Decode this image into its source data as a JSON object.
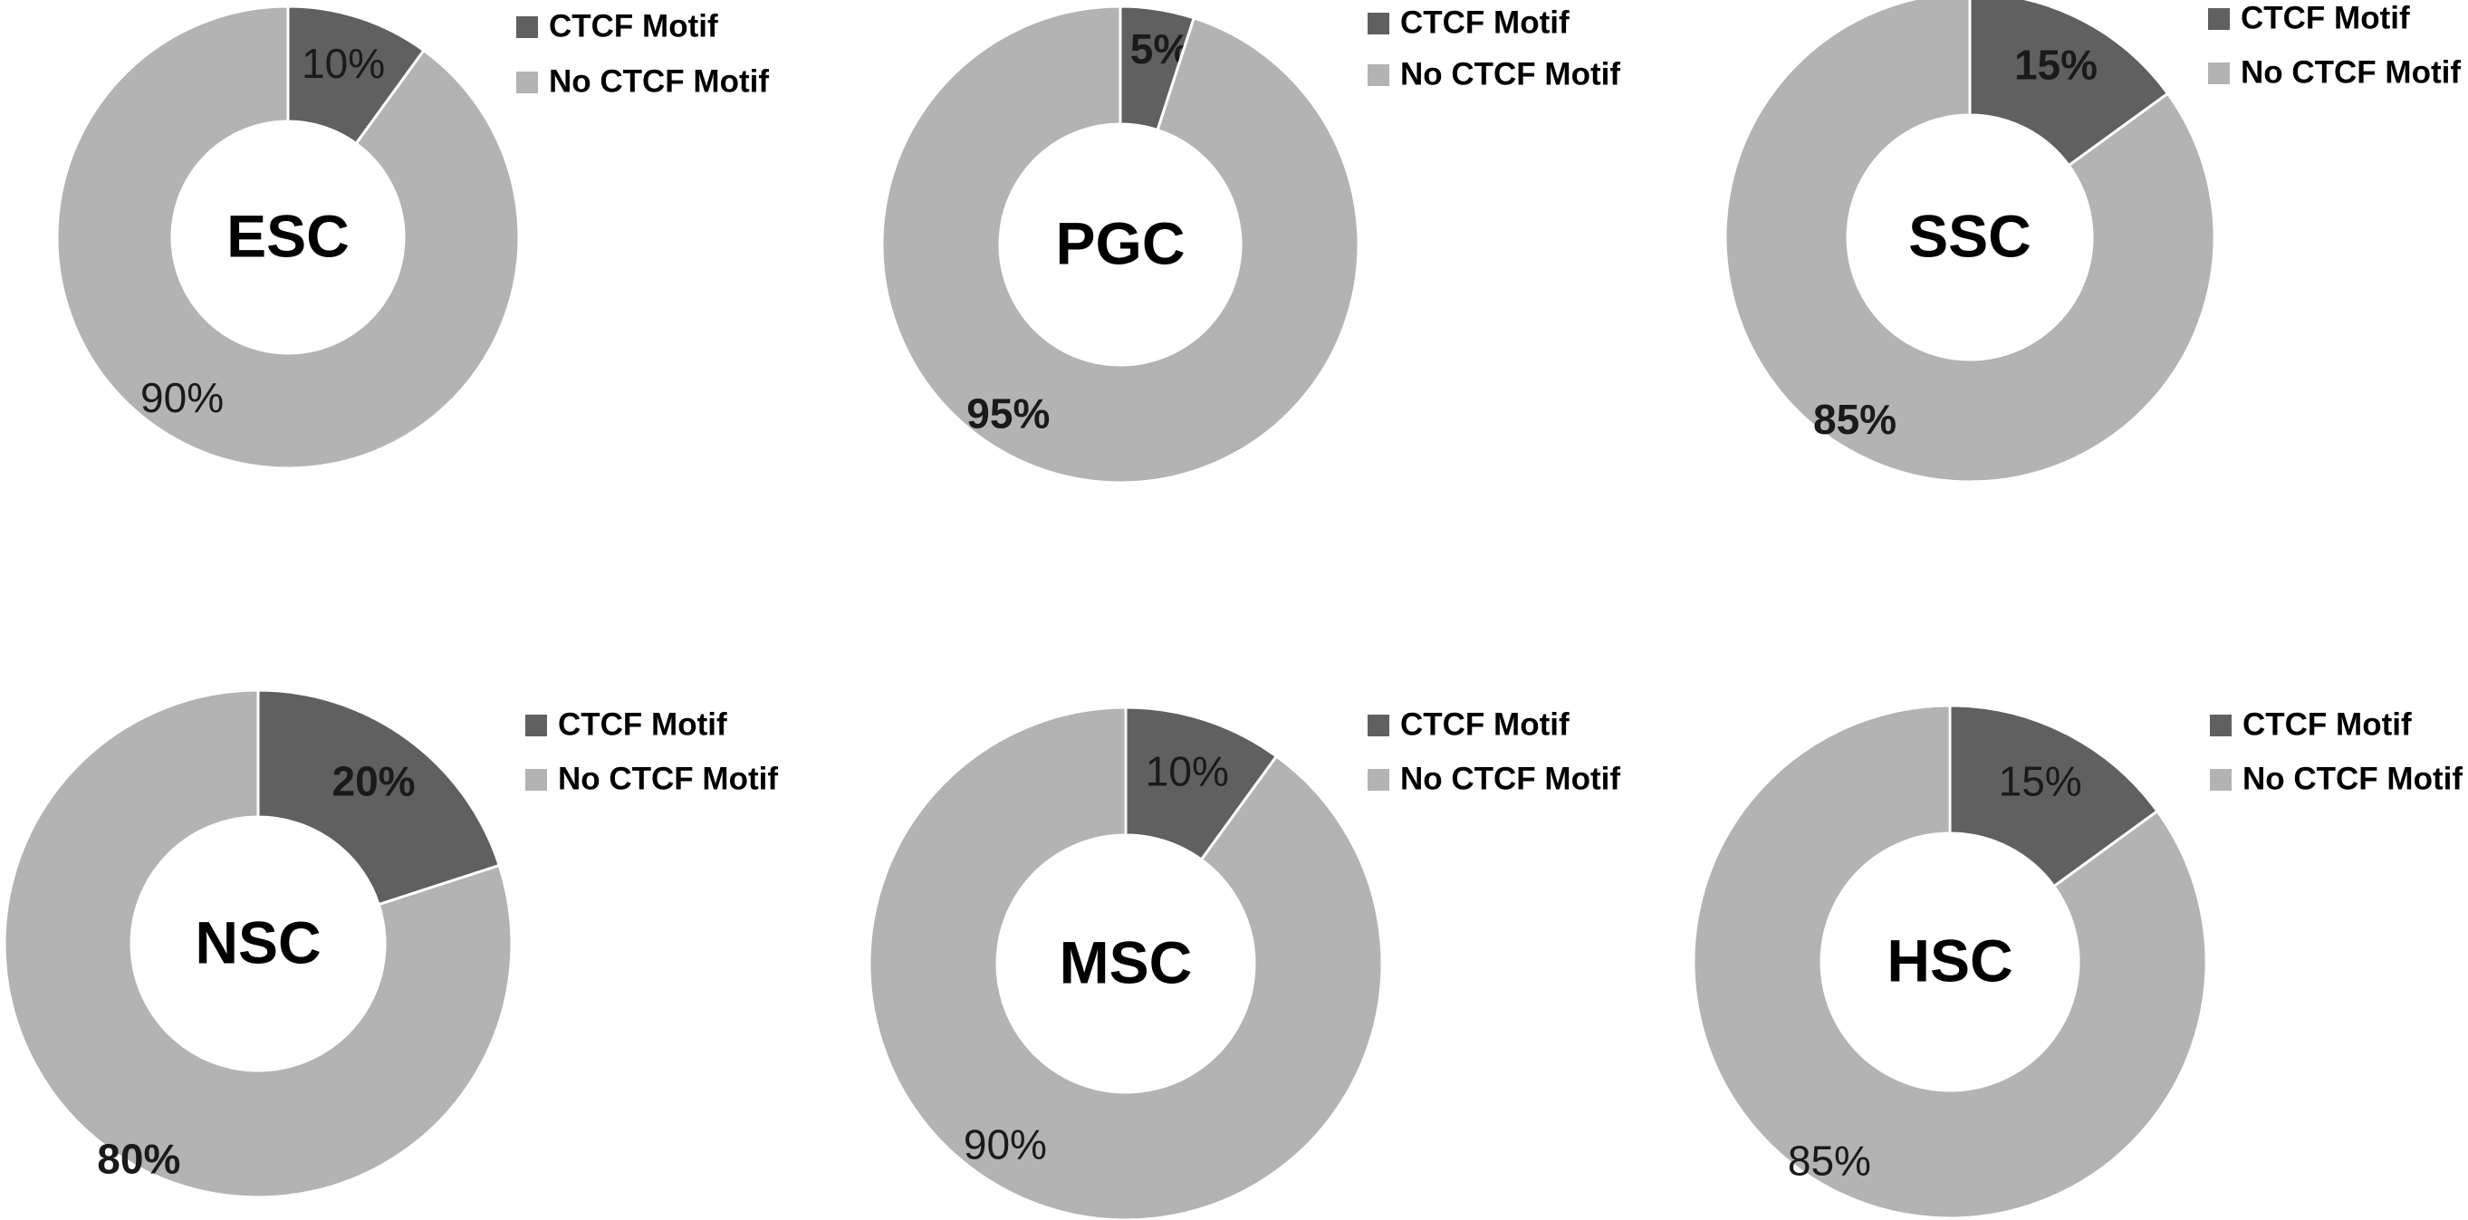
{
  "chart_data": [
    {
      "type": "pie",
      "style": "donut",
      "center_label": "ESC",
      "categories": [
        "CTCF Motif",
        "No CTCF Motif"
      ],
      "values": [
        10,
        90
      ],
      "data_labels": [
        "10%",
        "90%"
      ],
      "colors": [
        "#606060",
        "#b3b3b3"
      ],
      "legend_position": "right"
    },
    {
      "type": "pie",
      "style": "donut",
      "center_label": "PGC",
      "categories": [
        "CTCF Motif",
        "No CTCF Motif"
      ],
      "values": [
        5,
        95
      ],
      "data_labels": [
        "5%",
        "95%"
      ],
      "colors": [
        "#606060",
        "#b3b3b3"
      ],
      "legend_position": "right"
    },
    {
      "type": "pie",
      "style": "donut",
      "center_label": "SSC",
      "categories": [
        "CTCF Motif",
        "No CTCF Motif"
      ],
      "values": [
        15,
        85
      ],
      "data_labels": [
        "15%",
        "85%"
      ],
      "colors": [
        "#606060",
        "#b3b3b3"
      ],
      "legend_position": "right"
    },
    {
      "type": "pie",
      "style": "donut",
      "center_label": "NSC",
      "categories": [
        "CTCF Motif",
        "No CTCF Motif"
      ],
      "values": [
        20,
        80
      ],
      "data_labels": [
        "20%",
        "80%"
      ],
      "colors": [
        "#606060",
        "#b3b3b3"
      ],
      "legend_position": "right"
    },
    {
      "type": "pie",
      "style": "donut",
      "center_label": "MSC",
      "categories": [
        "CTCF Motif",
        "No CTCF Motif"
      ],
      "values": [
        10,
        90
      ],
      "data_labels": [
        "10%",
        "90%"
      ],
      "colors": [
        "#606060",
        "#b3b3b3"
      ],
      "legend_position": "right"
    },
    {
      "type": "pie",
      "style": "donut",
      "center_label": "HSC",
      "categories": [
        "CTCF Motif",
        "No CTCF Motif"
      ],
      "values": [
        15,
        85
      ],
      "data_labels": [
        "15%",
        "85%"
      ],
      "colors": [
        "#606060",
        "#b3b3b3"
      ],
      "legend_position": "right"
    }
  ]
}
